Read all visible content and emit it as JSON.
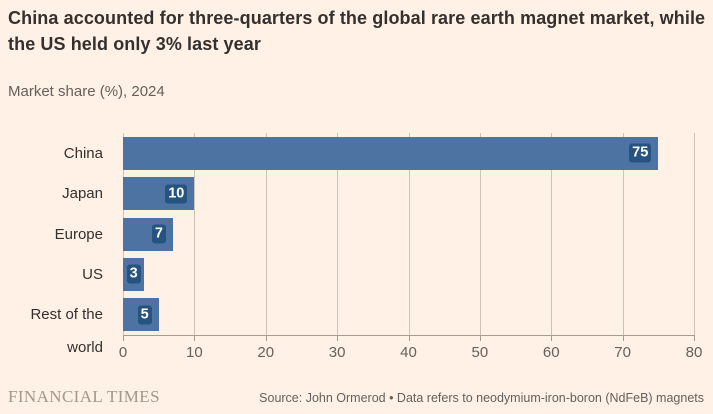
{
  "title": "China accounted for three-quarters of the global rare earth magnet market, while the US held only 3% last year",
  "subtitle": "Market share (%), 2024",
  "footer": {
    "brand": "FINANCIAL TIMES",
    "source": "Source: John Ormerod • Data refers to neodymium-iron-boron (NdFeB) magnets"
  },
  "colors": {
    "background": "#FFF1E5",
    "bar": "#4D73A2",
    "value_label_background": "#265380",
    "value_label_text": "#FFFFFF",
    "title_text": "#33302E",
    "muted_text": "#66605C",
    "gridline": "#CCC3B6",
    "axis_line": "#A59C8F",
    "brand_text": "#A39889"
  },
  "chart_data": {
    "type": "bar",
    "orientation": "horizontal",
    "title": "China accounted for three-quarters of the global rare earth magnet market, while the US held only 3% last year",
    "subtitle": "Market share (%), 2024",
    "categories": [
      "China",
      "Japan",
      "Europe",
      "US",
      "Rest of the world"
    ],
    "values": [
      75,
      10,
      7,
      3,
      5
    ],
    "data_labels": [
      "75",
      "10",
      "7",
      "3",
      "5"
    ],
    "xlabel": "",
    "ylabel": "",
    "xlim": [
      0,
      80
    ],
    "xticks": [
      0,
      10,
      20,
      30,
      40,
      50,
      60,
      70,
      80
    ],
    "grid": true,
    "legend": false
  }
}
